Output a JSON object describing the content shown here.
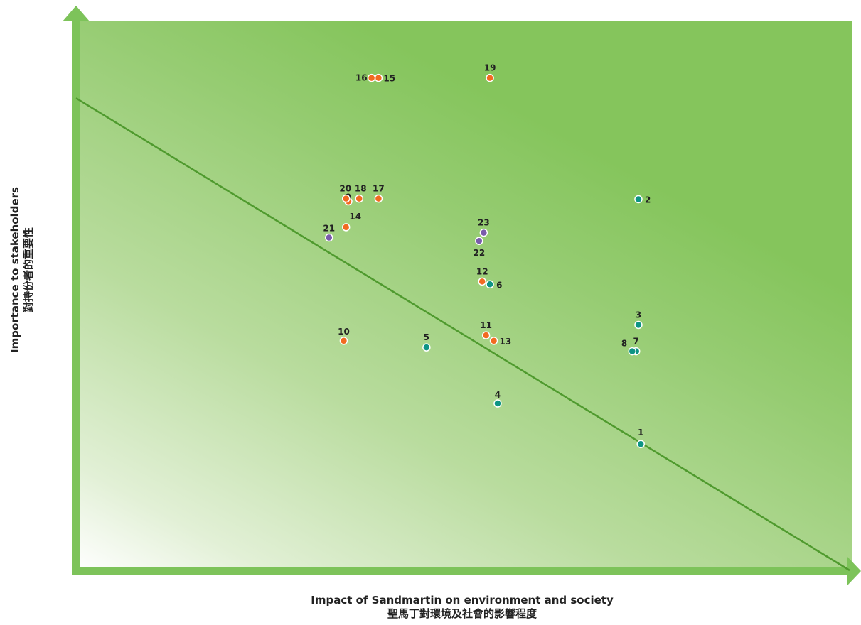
{
  "chart_data": {
    "type": "scatter",
    "xlabel": "Impact of Sandmartin on environment and society",
    "xlabel_zh": "聖馬丁對環境及社會的影響程度",
    "ylabel": "Importance to stakeholders",
    "ylabel_zh": "對持份者的重要性",
    "xlim": [
      0,
      10
    ],
    "ylim": [
      0,
      10
    ],
    "grid": false,
    "diagonal_line": {
      "from": [
        0,
        8.6
      ],
      "to": [
        10,
        0
      ]
    },
    "colors": {
      "teal": "#0e9484",
      "orange": "#f26a21",
      "purple": "#7a5cab",
      "line": "#4f9a2e",
      "frame": "#7dc35a",
      "plot_top": "#85c55c",
      "plot_low": "#ffffff"
    },
    "points": [
      {
        "label": "1",
        "x": 7.3,
        "y": 2.3,
        "color": "teal"
      },
      {
        "label": "2",
        "x": 7.27,
        "y": 6.76,
        "color": "teal"
      },
      {
        "label": "3",
        "x": 7.27,
        "y": 4.47,
        "color": "teal"
      },
      {
        "label": "4",
        "x": 5.45,
        "y": 3.04,
        "color": "teal"
      },
      {
        "label": "5",
        "x": 4.53,
        "y": 4.06,
        "color": "teal"
      },
      {
        "label": "6",
        "x": 5.35,
        "y": 5.21,
        "color": "teal"
      },
      {
        "label": "7",
        "x": 7.24,
        "y": 3.99,
        "color": "teal"
      },
      {
        "label": "8",
        "x": 7.19,
        "y": 3.99,
        "color": "teal"
      },
      {
        "label": "9",
        "x": 3.52,
        "y": 6.72,
        "color": "orange"
      },
      {
        "label": "10",
        "x": 3.46,
        "y": 4.18,
        "color": "orange"
      },
      {
        "label": "11",
        "x": 5.3,
        "y": 4.28,
        "color": "orange"
      },
      {
        "label": "12",
        "x": 5.25,
        "y": 5.26,
        "color": "orange"
      },
      {
        "label": "13",
        "x": 5.4,
        "y": 4.18,
        "color": "orange"
      },
      {
        "label": "14",
        "x": 3.49,
        "y": 6.25,
        "color": "orange"
      },
      {
        "label": "15",
        "x": 3.91,
        "y": 8.97,
        "color": "orange"
      },
      {
        "label": "16",
        "x": 3.82,
        "y": 8.97,
        "color": "orange"
      },
      {
        "label": "17",
        "x": 3.91,
        "y": 6.77,
        "color": "orange"
      },
      {
        "label": "18",
        "x": 3.66,
        "y": 6.77,
        "color": "orange"
      },
      {
        "label": "19",
        "x": 5.35,
        "y": 8.97,
        "color": "orange"
      },
      {
        "label": "20",
        "x": 3.49,
        "y": 6.77,
        "color": "orange"
      },
      {
        "label": "21",
        "x": 3.27,
        "y": 6.06,
        "color": "purple"
      },
      {
        "label": "22",
        "x": 5.21,
        "y": 6.0,
        "color": "purple"
      },
      {
        "label": "23",
        "x": 5.27,
        "y": 6.15,
        "color": "purple"
      }
    ]
  }
}
